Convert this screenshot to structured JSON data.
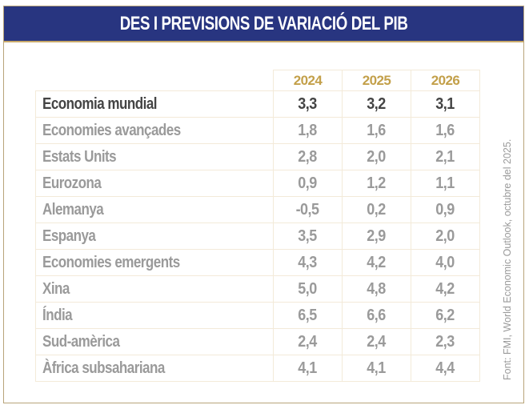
{
  "title": "DES I PREVISIONS DE VARIACIÓ DEL PIB",
  "colors": {
    "title_bg": "#283580",
    "year": "#c3a04a",
    "highlight_text": "#444444",
    "text": "#9a9a9a"
  },
  "years": [
    "2024",
    "2025",
    "2026"
  ],
  "rows": [
    {
      "label": "Economia mundial",
      "values": [
        "3,3",
        "3,2",
        "3,1"
      ]
    },
    {
      "label": "Economies avançades",
      "values": [
        "1,8",
        "1,6",
        "1,6"
      ]
    },
    {
      "label": "Estats Units",
      "values": [
        "2,8",
        "2,0",
        "2,1"
      ]
    },
    {
      "label": "Eurozona",
      "values": [
        "0,9",
        "1,2",
        "1,1"
      ]
    },
    {
      "label": "Alemanya",
      "values": [
        "-0,5",
        "0,2",
        "0,9"
      ]
    },
    {
      "label": "Espanya",
      "values": [
        "3,5",
        "2,9",
        "2,0"
      ]
    },
    {
      "label": "Economies emergents",
      "values": [
        "4,3",
        "4,2",
        "4,0"
      ]
    },
    {
      "label": "Xina",
      "values": [
        "5,0",
        "4,8",
        "4,2"
      ]
    },
    {
      "label": "Índia",
      "values": [
        "6,5",
        "6,6",
        "6,2"
      ]
    },
    {
      "label": "Sud-amèrica",
      "values": [
        "2,4",
        "2,4",
        "2,3"
      ]
    },
    {
      "label": "Àfrica subsahariana",
      "values": [
        "4,1",
        "4,1",
        "4,4"
      ]
    }
  ],
  "source": "Font: FMI, World Economic Outlook, octubre del 2025."
}
